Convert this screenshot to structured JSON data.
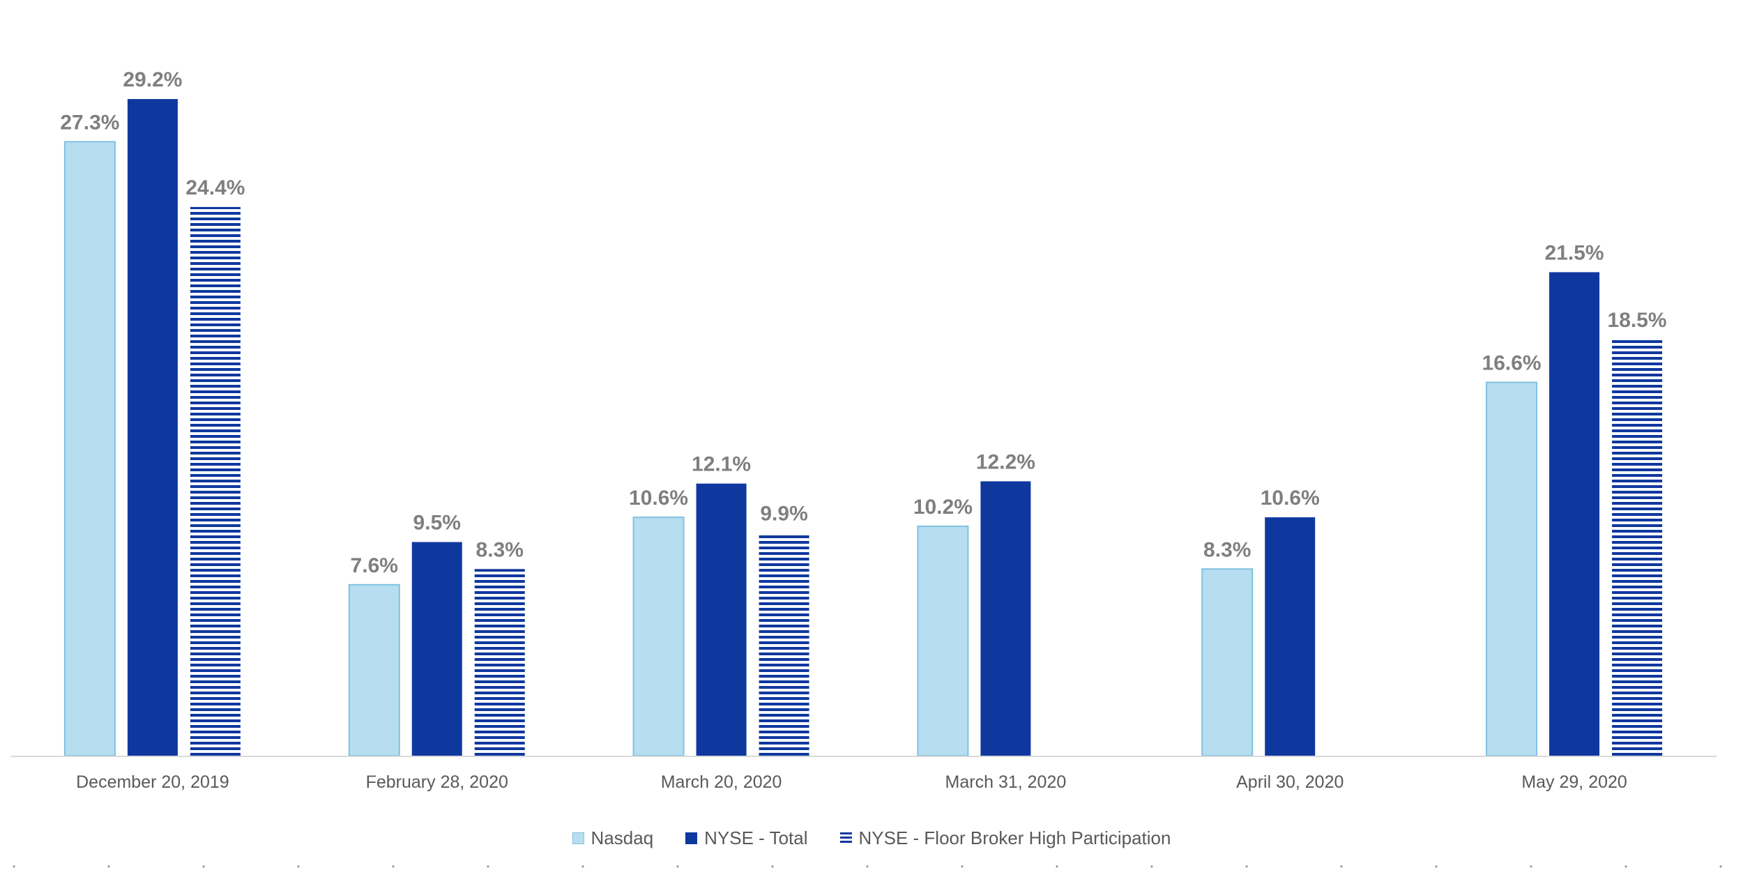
{
  "chart_data": {
    "type": "bar",
    "categories": [
      "December 20, 2019",
      "February 28, 2020",
      "March 20, 2020",
      "March 31, 2020",
      "April 30, 2020",
      "May 29, 2020"
    ],
    "series": [
      {
        "name": "Nasdaq",
        "values": [
          27.3,
          7.6,
          10.6,
          10.2,
          8.3,
          16.6
        ],
        "labels": [
          "27.3%",
          "7.6%",
          "10.6%",
          "10.2%",
          "8.3%",
          "16.6%"
        ],
        "color": "#b7def0",
        "border": "#7fc1e0",
        "pattern": "solid"
      },
      {
        "name": "NYSE - Total",
        "values": [
          29.2,
          9.5,
          12.1,
          12.2,
          10.6,
          21.5
        ],
        "labels": [
          "29.2%",
          "9.5%",
          "12.1%",
          "12.2%",
          "10.6%",
          "21.5%"
        ],
        "color": "#0f389f",
        "pattern": "solid"
      },
      {
        "name": "NYSE - Floor Broker High Participation",
        "values": [
          24.4,
          8.3,
          9.9,
          null,
          null,
          18.5
        ],
        "labels": [
          "24.4%",
          "8.3%",
          "9.9%",
          null,
          null,
          "18.5%"
        ],
        "color": "#0f389f",
        "pattern": "horizontal-stripes"
      }
    ],
    "ylim": [
      0,
      31
    ],
    "grid": false,
    "legend_position": "bottom-center",
    "data_label_color": "#7f7f7f",
    "axis_label_color": "#595959"
  }
}
